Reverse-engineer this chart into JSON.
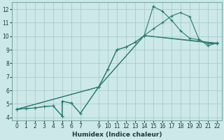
{
  "xlabel": "Humidex (Indice chaleur)",
  "bg_color": "#cce8e8",
  "grid_color": "#aacccc",
  "line_color": "#2a7a70",
  "xlim": [
    -0.5,
    22.5
  ],
  "ylim": [
    3.8,
    12.5
  ],
  "xticks": [
    0,
    1,
    2,
    3,
    4,
    5,
    6,
    7,
    9,
    10,
    11,
    12,
    13,
    14,
    15,
    16,
    17,
    18,
    19,
    20,
    21,
    22
  ],
  "yticks": [
    4,
    5,
    6,
    7,
    8,
    9,
    10,
    11,
    12
  ],
  "curve1_x": [
    0,
    1,
    2,
    3,
    4,
    5,
    5,
    6,
    7,
    9,
    10,
    11,
    12,
    13,
    14,
    15,
    15,
    16,
    17,
    18,
    19,
    20,
    21,
    22
  ],
  "curve1_y": [
    4.6,
    4.65,
    4.7,
    4.8,
    4.85,
    4.1,
    5.2,
    5.05,
    4.3,
    6.25,
    7.55,
    9.0,
    9.2,
    9.55,
    10.05,
    12.2,
    12.2,
    11.85,
    11.2,
    10.4,
    9.85,
    9.75,
    9.45,
    9.45
  ],
  "curve2_x": [
    0,
    1,
    2,
    3,
    4,
    5,
    5,
    6,
    7,
    9,
    10,
    11,
    12,
    13,
    14,
    15,
    16,
    17,
    18,
    19,
    20,
    21,
    22
  ],
  "curve2_y": [
    4.6,
    4.65,
    4.7,
    4.8,
    4.85,
    4.1,
    5.2,
    5.05,
    4.3,
    6.25,
    7.55,
    9.0,
    9.2,
    9.55,
    10.05,
    10.55,
    11.0,
    11.5,
    11.75,
    11.45,
    9.8,
    9.3,
    9.5
  ],
  "line3_x": [
    0,
    9,
    14,
    22
  ],
  "line3_y": [
    4.6,
    6.25,
    10.05,
    9.45
  ],
  "line4_x": [
    0,
    9,
    14,
    22
  ],
  "line4_y": [
    4.6,
    6.25,
    10.05,
    9.5
  ],
  "marker": "+",
  "xlabel_fontsize": 6.5,
  "tick_fontsize": 5.5
}
